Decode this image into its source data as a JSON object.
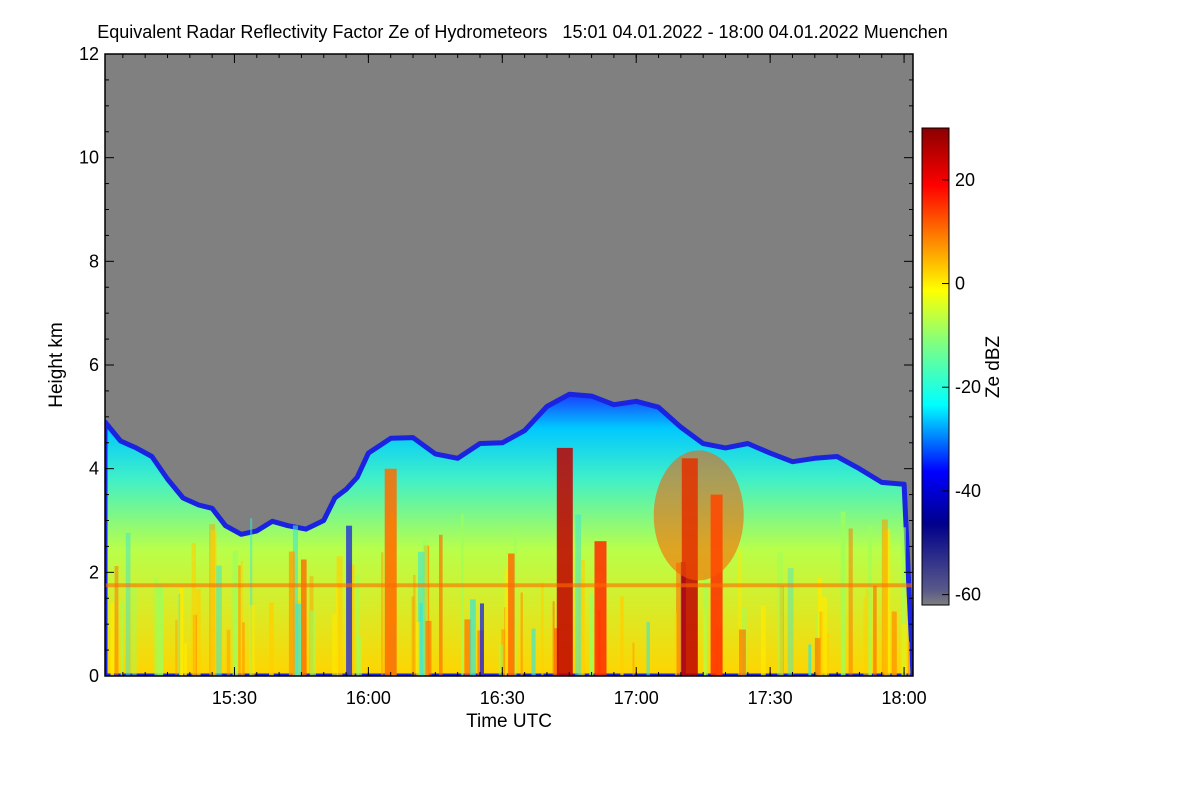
{
  "chart_data": {
    "type": "heatmap",
    "title": "Equivalent Radar Reflectivity Factor Ze of Hydrometeors   15:01 04.01.2022 - 18:00 04.01.2022 Muenchen",
    "xlabel": "Time UTC",
    "ylabel": "Height km",
    "colorbar_label": "Ze dBZ",
    "x_range": [
      "15:01",
      "18:00"
    ],
    "xlim_minutes": [
      901,
      1082
    ],
    "x_ticks": [
      {
        "label": "15:30",
        "minutes": 930
      },
      {
        "label": "16:00",
        "minutes": 960
      },
      {
        "label": "16:30",
        "minutes": 990
      },
      {
        "label": "17:00",
        "minutes": 1020
      },
      {
        "label": "17:30",
        "minutes": 1050
      },
      {
        "label": "18:00",
        "minutes": 1080
      }
    ],
    "ylim": [
      0,
      12
    ],
    "y_ticks": [
      0,
      2,
      4,
      6,
      8,
      10,
      12
    ],
    "clim": [
      -62,
      30
    ],
    "colorbar_ticks": [
      20,
      0,
      -20,
      -40,
      -60
    ],
    "no_signal_color": "#808080",
    "colormap": [
      "#7f7f7f",
      "#00008b",
      "#0000ff",
      "#00ffff",
      "#ffff00",
      "#ff8000",
      "#ff0000",
      "#8b0000"
    ],
    "cloud_top_km": [
      {
        "time": "15:01",
        "height": 4.9
      },
      {
        "time": "15:08",
        "height": 4.4
      },
      {
        "time": "15:15",
        "height": 3.8
      },
      {
        "time": "15:22",
        "height": 3.3
      },
      {
        "time": "15:28",
        "height": 2.9
      },
      {
        "time": "15:35",
        "height": 2.8
      },
      {
        "time": "15:42",
        "height": 2.9
      },
      {
        "time": "15:50",
        "height": 3.0
      },
      {
        "time": "15:55",
        "height": 3.6
      },
      {
        "time": "16:00",
        "height": 4.3
      },
      {
        "time": "16:10",
        "height": 4.6
      },
      {
        "time": "16:20",
        "height": 4.2
      },
      {
        "time": "16:30",
        "height": 4.5
      },
      {
        "time": "16:40",
        "height": 5.2
      },
      {
        "time": "16:50",
        "height": 5.4
      },
      {
        "time": "17:00",
        "height": 5.3
      },
      {
        "time": "17:10",
        "height": 4.8
      },
      {
        "time": "17:20",
        "height": 4.4
      },
      {
        "time": "17:30",
        "height": 4.3
      },
      {
        "time": "17:40",
        "height": 4.2
      },
      {
        "time": "17:50",
        "height": 4.0
      },
      {
        "time": "18:00",
        "height": 3.7
      }
    ],
    "strong_echo_cores": [
      {
        "time": "16:44",
        "top_km": 4.4,
        "max_dBZ": 30
      },
      {
        "time": "16:52",
        "top_km": 2.6,
        "max_dBZ": 20
      },
      {
        "time": "17:12",
        "top_km": 4.2,
        "max_dBZ": 25
      },
      {
        "time": "17:18",
        "top_km": 3.5,
        "max_dBZ": 18
      },
      {
        "time": "16:05",
        "top_km": 4.0,
        "max_dBZ": 12
      }
    ],
    "melting_layer_km": 1.75
  }
}
